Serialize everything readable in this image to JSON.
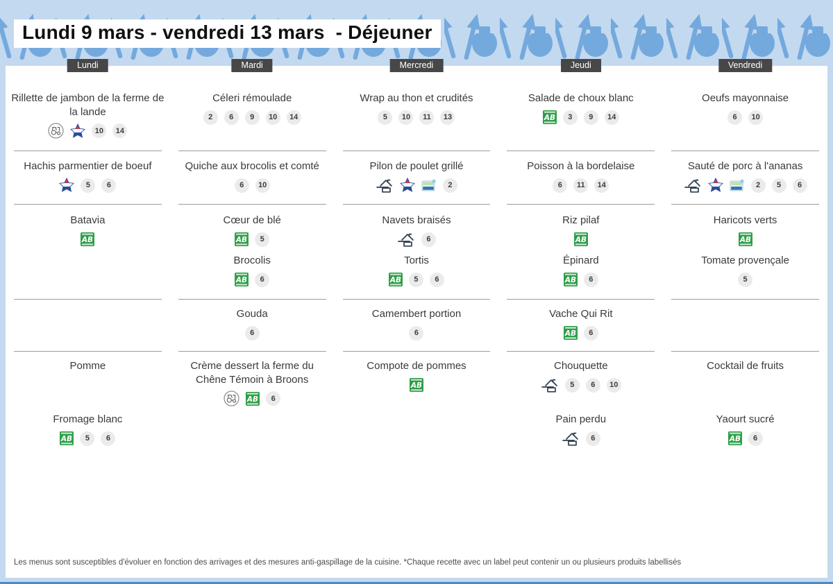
{
  "header": {
    "title": "Lundi 9 mars - vendredi 13 mars  - Déjeuner"
  },
  "footer": {
    "note": "Les menus sont susceptibles d'évoluer en fonction des arrivages et des mesures anti-gaspillage de la cuisine. *Chaque recette avec un label peut contenir un ou plusieurs produits labellisés"
  },
  "colors": {
    "page_blue": "#c3d9ef",
    "pattern_blue": "#74a9dd",
    "tab_bg": "#474747",
    "tab_text": "#ffffff",
    "divider": "#9b9b9b",
    "badge_bg": "#ebebeb",
    "ab_green": "#2f9e48",
    "bottom_line": "#4d88c9"
  },
  "icon_legend": {
    "ab": "Agriculture Biologique (organic) label",
    "tractor": "local farm producer label",
    "french-meat": "French meat (viande française) star label",
    "fait-maison": "fait maison (homemade) label",
    "quality-label": "quality certification label"
  },
  "days": [
    {
      "label": "Lundi",
      "sections": [
        [
          {
            "name": "Rillette de jambon de la ferme de la lande",
            "icons": [
              "tractor",
              "french-meat"
            ],
            "allergens": [
              "10",
              "14"
            ]
          }
        ],
        [
          {
            "name": "Hachis parmentier de boeuf",
            "icons": [
              "french-meat"
            ],
            "allergens": [
              "5",
              "6"
            ]
          }
        ],
        [
          {
            "name": "Batavia",
            "icons": [
              "ab"
            ],
            "allergens": []
          }
        ],
        [],
        [
          {
            "name": "Pomme",
            "icons": [],
            "allergens": []
          }
        ],
        [
          {
            "name": "Fromage blanc",
            "icons": [
              "ab"
            ],
            "allergens": [
              "5",
              "6"
            ]
          }
        ]
      ]
    },
    {
      "label": "Mardi",
      "sections": [
        [
          {
            "name": "Céleri rémoulade",
            "icons": [],
            "allergens": [
              "2",
              "6",
              "9",
              "10",
              "14"
            ]
          }
        ],
        [
          {
            "name": "Quiche aux brocolis et comté",
            "icons": [],
            "allergens": [
              "6",
              "10"
            ]
          }
        ],
        [
          {
            "name": "Cœur de blé",
            "icons": [
              "ab"
            ],
            "allergens": [
              "5"
            ]
          },
          {
            "name": "Brocolis",
            "icons": [
              "ab"
            ],
            "allergens": [
              "6"
            ]
          }
        ],
        [
          {
            "name": "Gouda",
            "icons": [],
            "allergens": [
              "6"
            ]
          }
        ],
        [
          {
            "name": "Crème dessert la ferme du Chêne Témoin à Broons",
            "icons": [
              "tractor",
              "ab"
            ],
            "allergens": [
              "6"
            ]
          }
        ],
        []
      ]
    },
    {
      "label": "Mercredi",
      "sections": [
        [
          {
            "name": "Wrap au thon et crudités",
            "icons": [],
            "allergens": [
              "5",
              "10",
              "11",
              "13"
            ]
          }
        ],
        [
          {
            "name": "Pilon de poulet grillé",
            "icons": [
              "fait-maison",
              "french-meat",
              "quality-label"
            ],
            "allergens": [
              "2"
            ]
          }
        ],
        [
          {
            "name": "Navets braisés",
            "icons": [
              "fait-maison"
            ],
            "allergens": [
              "6"
            ]
          },
          {
            "name": "Tortis",
            "icons": [
              "ab"
            ],
            "allergens": [
              "5",
              "6"
            ]
          }
        ],
        [
          {
            "name": "Camembert  portion",
            "icons": [],
            "allergens": [
              "6"
            ]
          }
        ],
        [
          {
            "name": "Compote de pommes",
            "icons": [
              "ab"
            ],
            "allergens": []
          }
        ],
        []
      ]
    },
    {
      "label": "Jeudi",
      "sections": [
        [
          {
            "name": "Salade de choux blanc",
            "icons": [
              "ab"
            ],
            "allergens": [
              "3",
              "9",
              "14"
            ]
          }
        ],
        [
          {
            "name": "Poisson à la bordelaise",
            "icons": [],
            "allergens": [
              "6",
              "11",
              "14"
            ]
          }
        ],
        [
          {
            "name": "Riz pilaf",
            "icons": [
              "ab"
            ],
            "allergens": []
          },
          {
            "name": "Épinard",
            "icons": [
              "ab"
            ],
            "allergens": [
              "6"
            ]
          }
        ],
        [
          {
            "name": "Vache Qui Rit",
            "icons": [
              "ab"
            ],
            "allergens": [
              "6"
            ]
          }
        ],
        [
          {
            "name": "Chouquette",
            "icons": [
              "fait-maison"
            ],
            "allergens": [
              "5",
              "6",
              "10"
            ]
          }
        ],
        [
          {
            "name": "Pain perdu",
            "icons": [
              "fait-maison"
            ],
            "allergens": [
              "6"
            ]
          }
        ]
      ]
    },
    {
      "label": "Vendredi",
      "sections": [
        [
          {
            "name": "Oeufs mayonnaise",
            "icons": [],
            "allergens": [
              "6",
              "10"
            ]
          }
        ],
        [
          {
            "name": "Sauté de porc à l'ananas",
            "icons": [
              "fait-maison",
              "french-meat",
              "quality-label"
            ],
            "allergens": [
              "2",
              "5",
              "6"
            ]
          }
        ],
        [
          {
            "name": "Haricots verts",
            "icons": [
              "ab"
            ],
            "allergens": []
          },
          {
            "name": "Tomate provençale",
            "icons": [],
            "allergens": [
              "5"
            ]
          }
        ],
        [],
        [
          {
            "name": "Cocktail de fruits",
            "icons": [],
            "allergens": []
          }
        ],
        [
          {
            "name": "Yaourt sucré",
            "icons": [
              "ab"
            ],
            "allergens": [
              "6"
            ]
          }
        ]
      ]
    }
  ]
}
